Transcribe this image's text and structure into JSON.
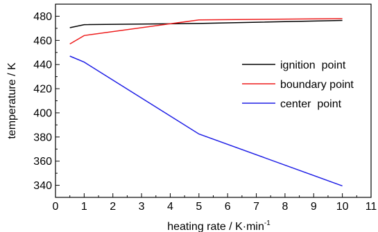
{
  "chart_data": {
    "type": "line",
    "xlabel": "heating rate / K·min",
    "xlabel_superscript": "-1",
    "ylabel": "temperature / K",
    "xlim": [
      0,
      11
    ],
    "ylim": [
      330,
      490
    ],
    "xticks": [
      "0",
      "1",
      "2",
      "3",
      "4",
      "5",
      "6",
      "7",
      "8",
      "9",
      "10",
      "11"
    ],
    "yticks": [
      "340",
      "360",
      "380",
      "400",
      "420",
      "440",
      "460",
      "480"
    ],
    "grid": false,
    "legend_position": "right-middle",
    "series": [
      {
        "name": "ignition  point",
        "color": "#000000",
        "x": [
          0.5,
          1,
          5,
          10
        ],
        "y": [
          470.5,
          473,
          474,
          476.5
        ]
      },
      {
        "name": "boundary point",
        "color": "#ee1c1c",
        "x": [
          0.5,
          1,
          5,
          10
        ],
        "y": [
          457,
          464,
          477,
          478
        ]
      },
      {
        "name": "center  point",
        "color": "#1f1fe6",
        "x": [
          0.5,
          1,
          5,
          10
        ],
        "y": [
          447,
          442,
          382.5,
          339.5
        ]
      }
    ]
  }
}
